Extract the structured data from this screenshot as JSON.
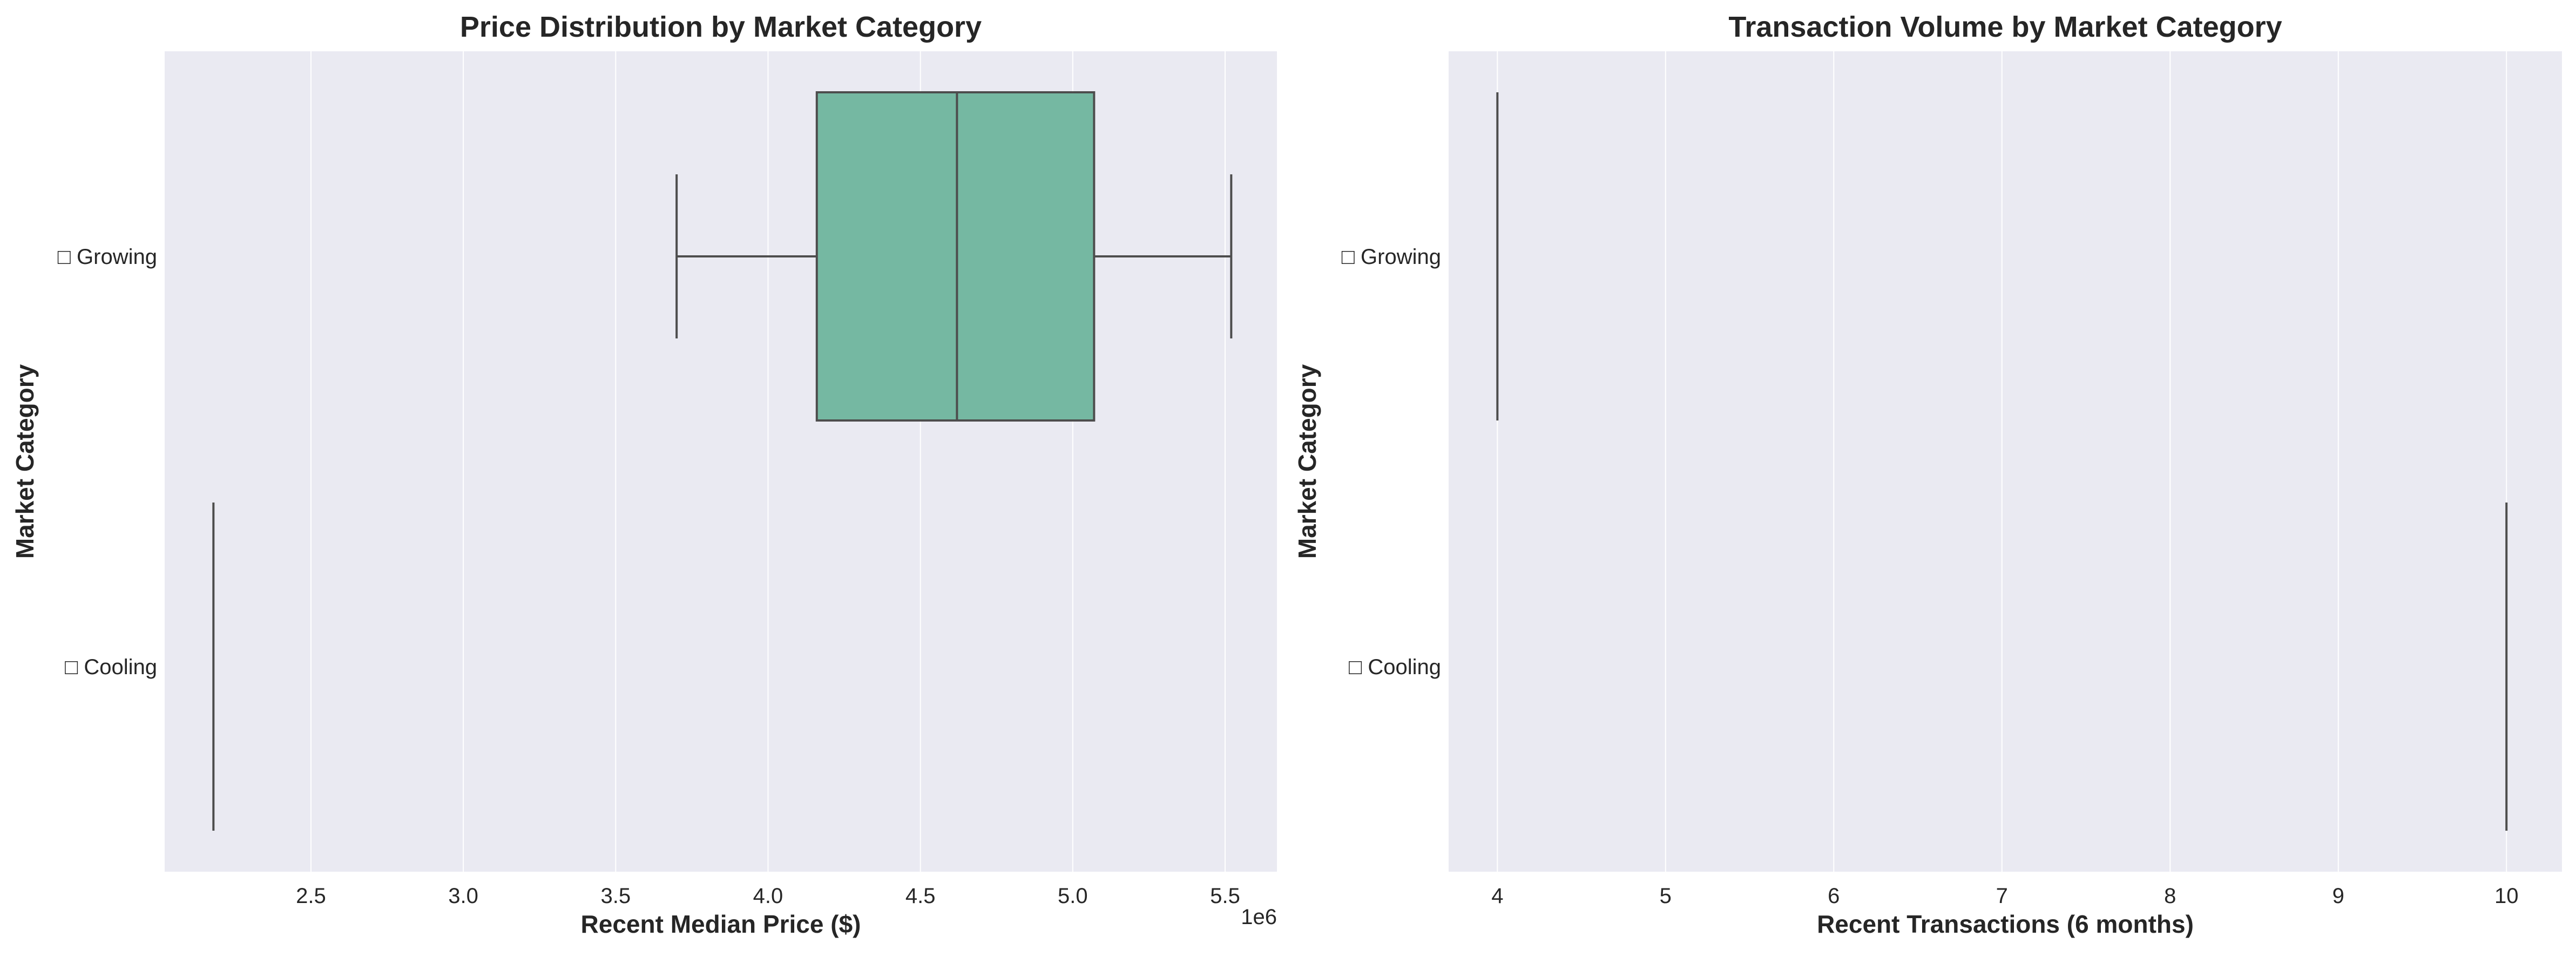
{
  "colors": {
    "background": "#eaeaf2",
    "grid": "#ffffff",
    "box_fill": "#75b8a2",
    "line": "#4d4d4d",
    "text": "#262626"
  },
  "chart_data": [
    {
      "type": "box",
      "orientation": "horizontal",
      "title": "Price Distribution by Market Category",
      "xlabel": "Recent Median Price ($)",
      "ylabel": "Market Category",
      "x_offset_label": "1e6",
      "xlim": [
        2.02,
        5.67
      ],
      "x_ticks": [
        2.5,
        3.0,
        3.5,
        4.0,
        4.5,
        5.0,
        5.5
      ],
      "x_tick_labels": [
        "2.5",
        "3.0",
        "3.5",
        "4.0",
        "4.5",
        "5.0",
        "5.5"
      ],
      "categories": [
        "□ Growing",
        "□ Cooling"
      ],
      "series": [
        {
          "category": "□ Growing",
          "whisker_low": 3.7,
          "q1": 4.16,
          "median": 4.62,
          "q3": 5.07,
          "whisker_high": 5.52
        },
        {
          "category": "□ Cooling",
          "whisker_low": 2.18,
          "q1": 2.18,
          "median": 2.18,
          "q3": 2.18,
          "whisker_high": 2.18
        }
      ],
      "grid": true
    },
    {
      "type": "box",
      "orientation": "horizontal",
      "title": "Transaction Volume by Market Category",
      "xlabel": "Recent Transactions (6 months)",
      "ylabel": "Market Category",
      "xlim": [
        3.71,
        10.33
      ],
      "x_ticks": [
        4,
        5,
        6,
        7,
        8,
        9,
        10
      ],
      "x_tick_labels": [
        "4",
        "5",
        "6",
        "7",
        "8",
        "9",
        "10"
      ],
      "categories": [
        "□ Growing",
        "□ Cooling"
      ],
      "series": [
        {
          "category": "□ Growing",
          "whisker_low": 4,
          "q1": 4,
          "median": 4,
          "q3": 4,
          "whisker_high": 4
        },
        {
          "category": "□ Cooling",
          "whisker_low": 10,
          "q1": 10,
          "median": 10,
          "q3": 10,
          "whisker_high": 10
        }
      ],
      "grid": true
    }
  ]
}
